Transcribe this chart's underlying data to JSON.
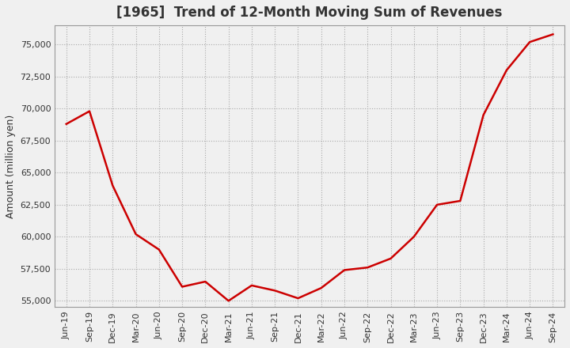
{
  "title": "[1965]  Trend of 12-Month Moving Sum of Revenues",
  "ylabel": "Amount (million yen)",
  "line_color": "#cc0000",
  "background_color": "#f0f0f0",
  "plot_bg_color": "#f0f0f0",
  "grid_color": "#aaaaaa",
  "x_labels": [
    "Jun-19",
    "Sep-19",
    "Dec-19",
    "Mar-20",
    "Jun-20",
    "Sep-20",
    "Dec-20",
    "Mar-21",
    "Jun-21",
    "Sep-21",
    "Dec-21",
    "Mar-22",
    "Jun-22",
    "Sep-22",
    "Dec-22",
    "Mar-23",
    "Jun-23",
    "Sep-23",
    "Dec-23",
    "Mar-24",
    "Jun-24",
    "Sep-24"
  ],
  "y_values": [
    68800,
    69800,
    64000,
    60200,
    59000,
    56100,
    56500,
    55000,
    56200,
    55800,
    55200,
    56000,
    57400,
    57600,
    58300,
    60000,
    62500,
    62800,
    69500,
    73000,
    75200,
    75800
  ],
  "ylim": [
    54500,
    76500
  ],
  "yticks": [
    55000,
    57500,
    60000,
    62500,
    65000,
    67500,
    70000,
    72500,
    75000
  ],
  "title_fontsize": 12,
  "label_fontsize": 9,
  "tick_fontsize": 8
}
